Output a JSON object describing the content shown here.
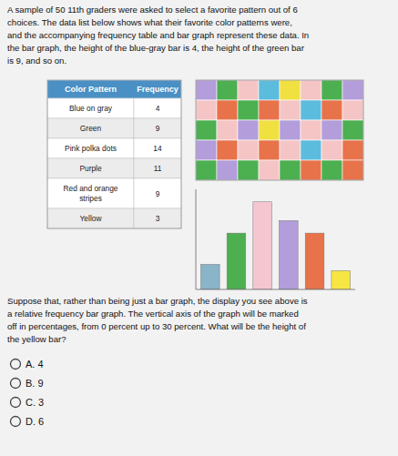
{
  "chart_data": {
    "type": "bar",
    "title": "A sample of 50 11th graders were asked to select a favorite pattern out of 6\nchoices. The data list below shows what their favorite color patterns were,\nand the accompanying frequency table and bar graph represent these data. In\nthe bar graph, the height of the blue-gray bar is 4, the height of the green bar\nis 9, and so on.",
    "categories": [
      null,
      null,
      null,
      null,
      null,
      null
    ],
    "values": [
      4,
      9,
      14,
      11,
      9,
      3
    ],
    "colors": [
      "#8ab4c8",
      "#4caf50",
      "#f5c5d0",
      "#b39ddb",
      "#e8724a",
      "#f5e642"
    ],
    "ylim": [
      0,
      16
    ],
    "yticks": [],
    "tick_labels": false,
    "grid": false,
    "annotations": [
      "Suppose that, rather than being just a bar graph, the display you see above is\na relative frequency bar graph. The vertical axis of the graph will be marked\noff in percentages, from 0 percent up to 30 percent. What will be the height of\nthe yellow bar?",
      "A.  4",
      "B.  9",
      "C.  3",
      "D.  6"
    ],
    "table": {
      "columns": [
        "Color Pattern",
        "Frequency"
      ],
      "rows": [
        [
          "Blue on gray",
          4
        ],
        [
          "Green",
          9
        ],
        [
          "Pink polka dots",
          14
        ],
        [
          "Purple",
          11
        ],
        [
          "Red and orange\nstripes",
          9
        ],
        [
          "Yellow",
          3
        ]
      ]
    },
    "pattern_grid": [
      [
        "purple",
        "green",
        "pink",
        "blue",
        "yellow",
        "pink",
        "green",
        "purple"
      ],
      [
        "pink",
        "orange",
        "green",
        "orange",
        "pink",
        "blue",
        "orange",
        "pink"
      ],
      [
        "green",
        "pink",
        "purple",
        "yellow",
        "purple",
        "pink",
        "purple",
        "green"
      ],
      [
        "purple",
        "orange",
        "pink",
        "orange",
        "pink",
        "blue",
        "pink",
        "orange"
      ],
      [
        "green",
        "purple",
        "green",
        "pink",
        "green",
        "orange",
        "green",
        "orange"
      ]
    ],
    "pattern_colors": {
      "purple": "#b39ddb",
      "green": "#4caf50",
      "pink": "#f5c5c5",
      "blue": "#5bbcdd",
      "yellow": "#f0e040",
      "orange": "#e8724a"
    }
  }
}
